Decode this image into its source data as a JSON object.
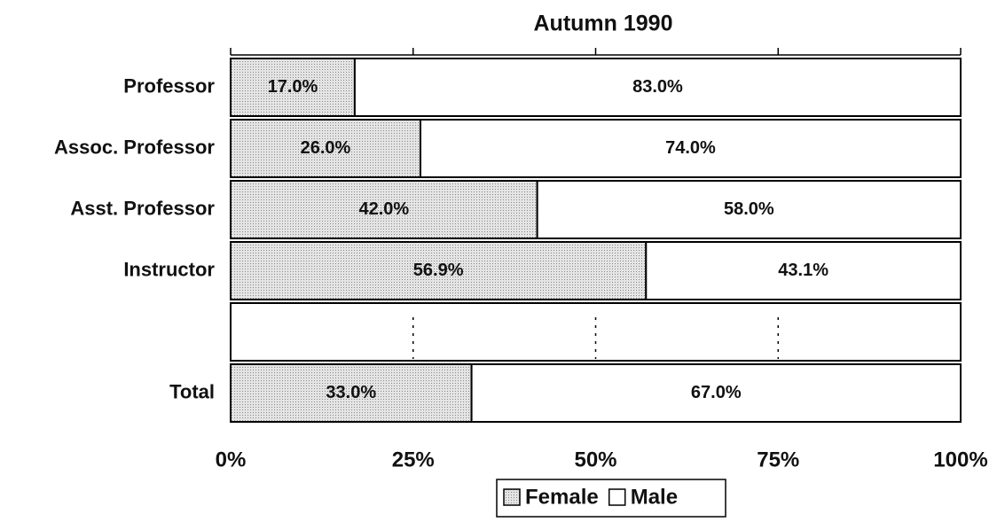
{
  "chart_data": {
    "type": "stacked_hbar",
    "title": "Autumn 1990",
    "categories": [
      "Professor",
      "Assoc. Professor",
      "Asst. Professor",
      "Instructor",
      null,
      "Total"
    ],
    "series": [
      {
        "name": "Female",
        "color": "#d6d6d6",
        "values": [
          17.0,
          26.0,
          42.0,
          56.9,
          null,
          33.0
        ],
        "value_labels": [
          "17.0%",
          "26.0%",
          "42.0%",
          "56.9%",
          null,
          "33.0%"
        ]
      },
      {
        "name": "Male",
        "color": "#ffffff",
        "values": [
          83.0,
          74.0,
          58.0,
          43.1,
          null,
          67.0
        ],
        "value_labels": [
          "83.0%",
          "74.0%",
          "58.0%",
          "43.1%",
          null,
          "67.0%"
        ]
      }
    ],
    "xlim": [
      0,
      100
    ],
    "xticks": [
      {
        "value": 0,
        "label": "0%"
      },
      {
        "value": 25,
        "label": "25%"
      },
      {
        "value": 50,
        "label": "50%"
      },
      {
        "value": 75,
        "label": "75%"
      },
      {
        "value": 100,
        "label": "100%"
      }
    ],
    "legend": "bottom"
  }
}
